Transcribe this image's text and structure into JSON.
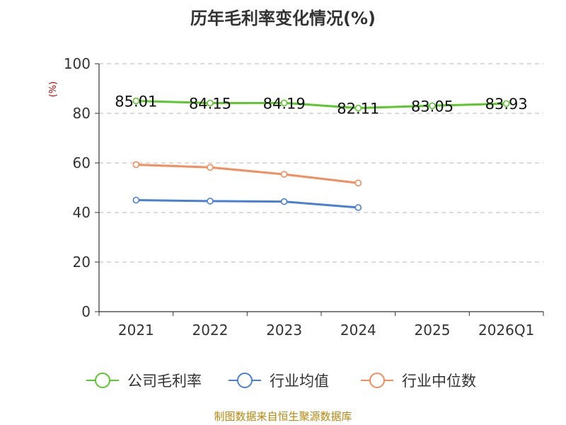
{
  "chart_data": {
    "type": "line",
    "title": "历年毛利率变化情况(%)",
    "ylabel": "(%)",
    "xlabel": "",
    "categories": [
      "2021",
      "2022",
      "2023",
      "2024",
      "2025",
      "2026Q1"
    ],
    "ylim": [
      0,
      100
    ],
    "yticks": [
      "0",
      "20",
      "40",
      "60",
      "80",
      "100"
    ],
    "grid": true,
    "legend_position": "bottom",
    "series": [
      {
        "name": "公司毛利率",
        "color": "#5cc72c",
        "values": [
          85.01,
          84.15,
          84.19,
          82.11,
          83.05,
          83.93
        ],
        "labels": [
          "85.01",
          "84.15",
          "84.19",
          "82.11",
          "83.05",
          "83.93"
        ],
        "show_labels": true
      },
      {
        "name": "行业均值",
        "color": "#4a7fd8",
        "values": [
          45.0,
          44.6,
          44.4,
          42.0,
          null,
          null
        ],
        "show_labels": false
      },
      {
        "name": "行业中位数",
        "color": "#f58c5c",
        "values": [
          59.3,
          58.2,
          55.4,
          51.9,
          null,
          null
        ],
        "show_labels": false
      }
    ],
    "source": "制图数据来自恒生聚源数据库"
  }
}
